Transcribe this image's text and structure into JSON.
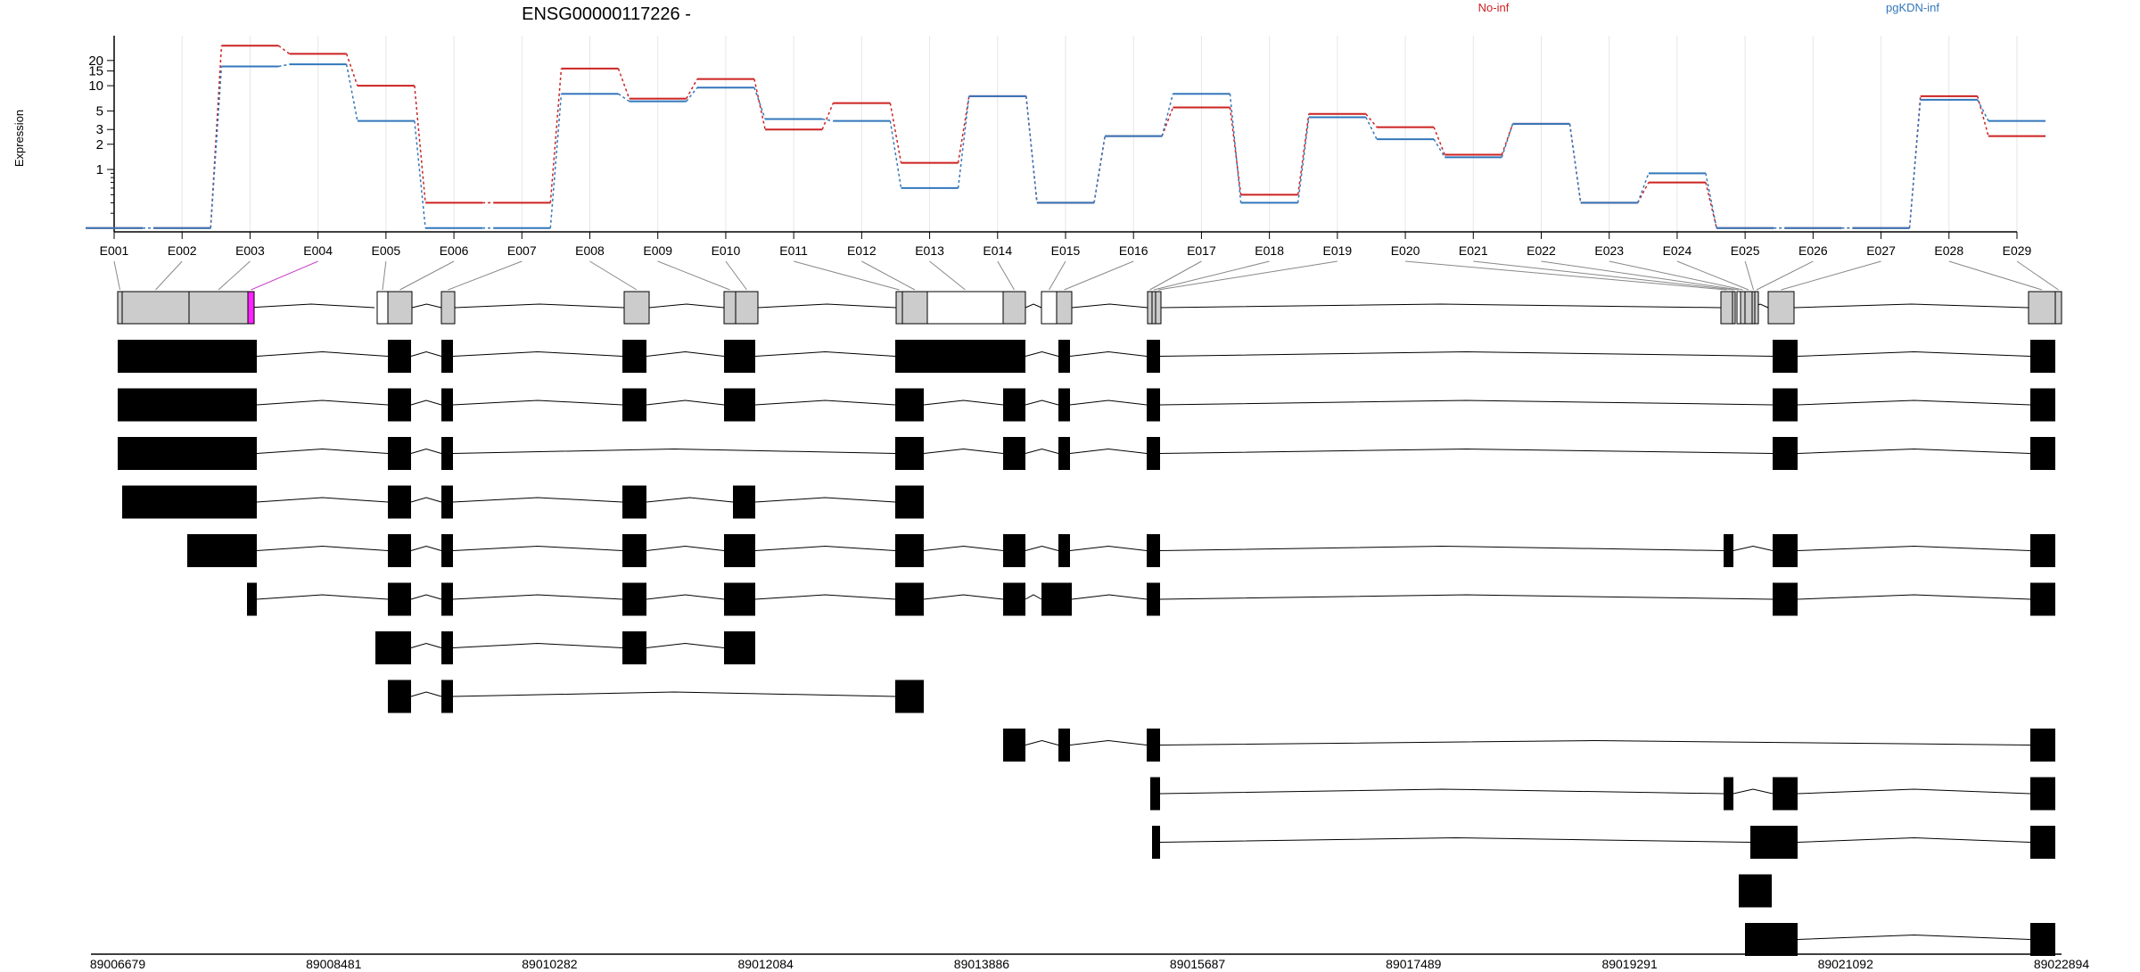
{
  "chart_data": {
    "type": "line",
    "title": "ENSG00000117226 -",
    "ylabel": "Expression",
    "yscale": "log",
    "yticks": [
      1,
      2,
      3,
      5,
      10,
      15,
      20
    ],
    "ylim": [
      0.18,
      35
    ],
    "grid": true,
    "legend_placement": "top",
    "categories": [
      "E001",
      "E002",
      "E003",
      "E004",
      "E005",
      "E006",
      "E007",
      "E008",
      "E009",
      "E010",
      "E011",
      "E012",
      "E013",
      "E014",
      "E015",
      "E016",
      "E017",
      "E018",
      "E019",
      "E020",
      "E021",
      "E022",
      "E023",
      "E024",
      "E025",
      "E026",
      "E027",
      "E028",
      "E029"
    ],
    "series": [
      {
        "name": "No-inf",
        "color": "#cc2222",
        "values": [
          0.2,
          0.2,
          30,
          24,
          10,
          0.4,
          0.4,
          16,
          7,
          12,
          3,
          6.2,
          1.2,
          7.5,
          0.4,
          2.5,
          5.5,
          0.5,
          4.6,
          3.2,
          1.5,
          3.5,
          0.4,
          0.7,
          0.2,
          0.2,
          0.2,
          7.5,
          2.5
        ]
      },
      {
        "name": "pgKDN-inf",
        "color": "#3377bb",
        "values": [
          0.2,
          0.2,
          17,
          18,
          3.8,
          0.2,
          0.2,
          8,
          6.5,
          9.5,
          4,
          3.8,
          0.6,
          7.5,
          0.4,
          2.5,
          8,
          0.4,
          4.2,
          2.3,
          1.4,
          3.5,
          0.4,
          0.9,
          0.2,
          0.2,
          0.2,
          6.8,
          3.8
        ]
      }
    ],
    "genomic_axis": {
      "ticks": [
        "89006679",
        "89008481",
        "89010282",
        "89012084",
        "89013886",
        "89015687",
        "89017489",
        "89019291",
        "89021092",
        "89022894"
      ]
    }
  }
}
